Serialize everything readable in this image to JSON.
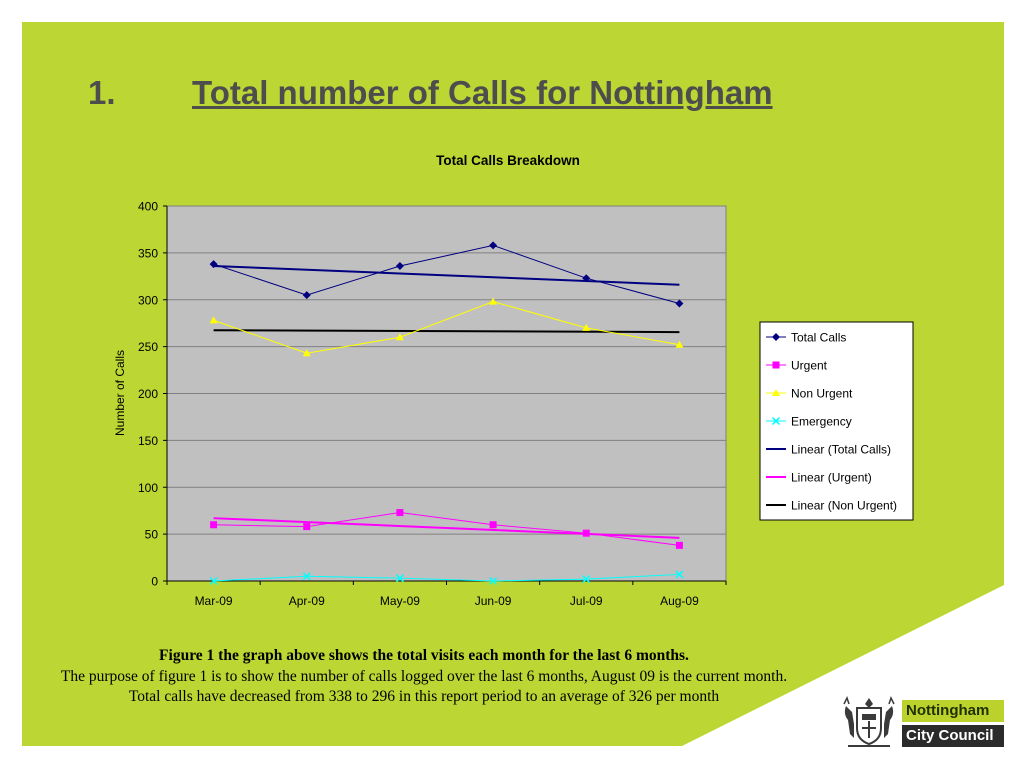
{
  "slide": {
    "number": "1.",
    "title": "Total number of Calls for Nottingham",
    "colors": {
      "green": "#bcd733",
      "white": "#ffffff"
    }
  },
  "chart_data": {
    "type": "line",
    "title": "Total Calls Breakdown",
    "xlabel": "",
    "ylabel": "Number of Calls",
    "ylim": [
      0,
      400
    ],
    "yticks": [
      0,
      50,
      100,
      150,
      200,
      250,
      300,
      350,
      400
    ],
    "categories": [
      "Mar-09",
      "Apr-09",
      "May-09",
      "Jun-09",
      "Jul-09",
      "Aug-09"
    ],
    "grid": true,
    "legend_position": "right",
    "plot_background": "#c0c0c0",
    "series": [
      {
        "name": "Total Calls",
        "values": [
          338,
          305,
          336,
          358,
          323,
          296
        ],
        "color": "#000080",
        "marker": "diamond"
      },
      {
        "name": "Urgent",
        "values": [
          60,
          58,
          73,
          60,
          51,
          38
        ],
        "color": "#ff00ff",
        "marker": "square"
      },
      {
        "name": "Non Urgent",
        "values": [
          278,
          243,
          260,
          298,
          270,
          252
        ],
        "color": "#ffff00",
        "marker": "triangle"
      },
      {
        "name": "Emergency",
        "values": [
          0,
          5,
          3,
          0,
          2,
          7
        ],
        "color": "#00ffff",
        "marker": "x"
      }
    ],
    "trendlines": [
      {
        "name": "Linear (Total Calls)",
        "values": [
          336,
          332,
          328,
          324,
          320,
          316
        ],
        "color": "#000080"
      },
      {
        "name": "Linear (Urgent)",
        "values": [
          67,
          63,
          59,
          55,
          51,
          46
        ],
        "color": "#ff00ff"
      },
      {
        "name": "Linear (Non Urgent)",
        "values": [
          267.5,
          267,
          266.7,
          266.3,
          266,
          265.5
        ],
        "color": "#000000"
      }
    ]
  },
  "caption": {
    "heading": "Figure 1 the graph above shows the total visits each month for the last 6 months.",
    "body": "The purpose of figure 1 is to show the number of calls logged over the last 6 months, August 09 is the current month. Total calls have decreased from 338 to 296 in this report period to an average of 326 per month"
  },
  "logo": {
    "line1": "Nottingham",
    "line2": "City Council",
    "crest_icon": "coat-of-arms-icon"
  }
}
